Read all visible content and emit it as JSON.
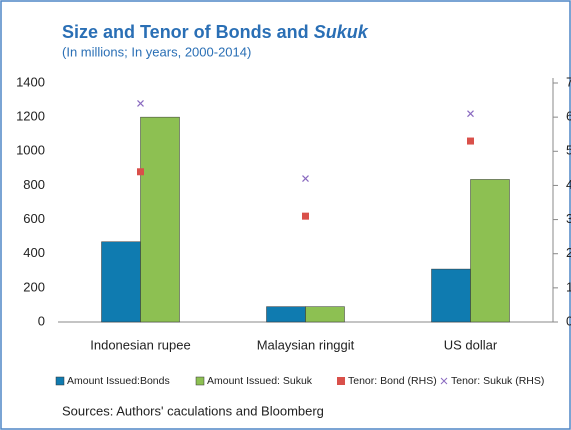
{
  "chart_data": {
    "type": "bar",
    "title": "Size and Tenor of Bonds and",
    "title_italic": "Sukuk",
    "subtitle": "(In millions; In years, 2000-2014)",
    "source": "Sources: Authors' caculations and Bloomberg",
    "categories": [
      "Indonesian rupee",
      "Malaysian ringgit",
      "US dollar"
    ],
    "series": [
      {
        "name": "Amount Issued:Bonds",
        "type": "bar",
        "color": "#0f7bb0",
        "values": [
          470,
          90,
          310
        ]
      },
      {
        "name": "Amount Issued: Sukuk",
        "type": "bar",
        "color": "#8dc052",
        "values": [
          1200,
          90,
          835
        ]
      },
      {
        "name": "Tenor: Bond (RHS)",
        "type": "scatter",
        "marker": "square",
        "axis": "y2",
        "color": "#d9504a",
        "values": [
          4.4,
          3.1,
          5.3
        ]
      },
      {
        "name": "Tenor: Sukuk (RHS)",
        "type": "scatter",
        "marker": "x",
        "axis": "y2",
        "color": "#8a6ac0",
        "values": [
          6.4,
          4.2,
          6.1
        ]
      }
    ],
    "ylim": [
      0,
      1400
    ],
    "yticks": [
      0,
      200,
      400,
      600,
      800,
      1000,
      1200,
      1400
    ],
    "y2lim": [
      0,
      7
    ],
    "y2ticks": [
      0,
      1,
      2,
      3,
      4,
      5,
      6,
      7
    ],
    "legend": "bottom"
  }
}
